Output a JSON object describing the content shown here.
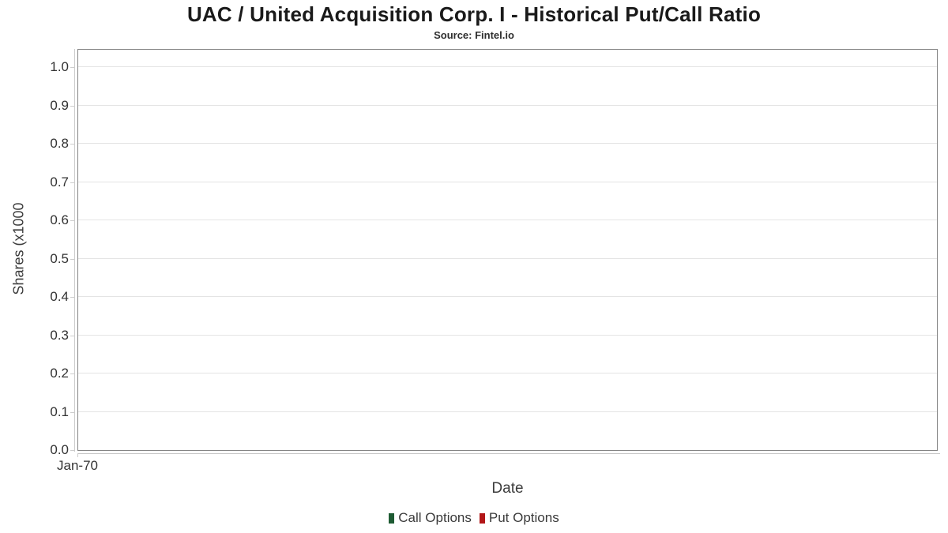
{
  "chart_data": {
    "type": "line",
    "title": "UAC / United Acquisition Corp. I - Historical Put/Call Ratio",
    "subtitle": "Source: Fintel.io",
    "xlabel": "Date",
    "ylabel": "Shares (x1000",
    "x_tick_labels": [
      "Jan-70"
    ],
    "y_tick_labels": [
      "0.0",
      "0.1",
      "0.2",
      "0.3",
      "0.4",
      "0.5",
      "0.6",
      "0.7",
      "0.8",
      "0.9",
      "1.0"
    ],
    "ylim": [
      0.0,
      1.05
    ],
    "y_tick_interval": 0.1,
    "grid": true,
    "legend_position": "bottom",
    "series": [
      {
        "name": "Call Options",
        "color": "#1e5b33",
        "x": [],
        "values": []
      },
      {
        "name": "Put Options",
        "color": "#b21618",
        "x": [],
        "values": []
      }
    ]
  },
  "colors": {
    "plot_border": "#858585",
    "gridline": "#e4e4e4",
    "axis_line": "#cccccc",
    "title_text": "#1a1a1a",
    "tick_text": "#333333",
    "axis_title_text": "#3c3c3c",
    "background": "#ffffff"
  }
}
